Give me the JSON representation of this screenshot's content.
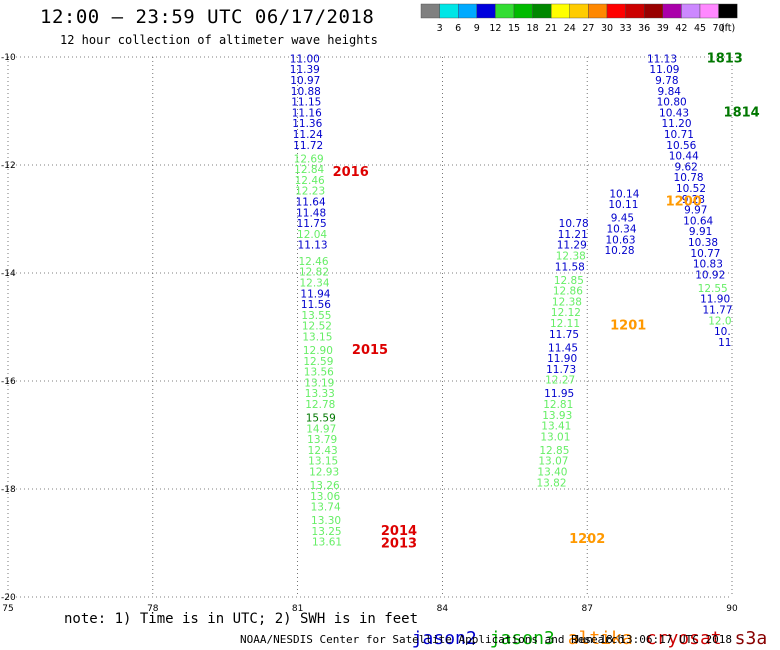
{
  "title": "12:00 — 23:59 UTC 06/17/2018",
  "subtitle": "12 hour collection of altimeter wave heights",
  "colorbar": {
    "unit": "(ft)",
    "ticks": [
      "3",
      "6",
      "9",
      "12",
      "15",
      "18",
      "21",
      "24",
      "27",
      "30",
      "33",
      "36",
      "39",
      "42",
      "45",
      "70"
    ],
    "colors": [
      "#808080",
      "#00e6e6",
      "#00aaff",
      "#0000dd",
      "#33dd33",
      "#00bb00",
      "#008800",
      "#ffff00",
      "#ffcc00",
      "#ff8800",
      "#ff0000",
      "#cc0000",
      "#990000",
      "#aa00aa",
      "#cc88ff",
      "#ff88ff",
      "#000000"
    ]
  },
  "footnote": "note: 1) Time is in UTC; 2) SWH is in feet",
  "legend": [
    {
      "label": "jason2",
      "color": "#0000cc"
    },
    {
      "label": "jason3",
      "color": "#00aa00"
    },
    {
      "label": "altika",
      "color": "#ff8800"
    },
    {
      "label": "cryosat",
      "color": "#cc0000"
    },
    {
      "label": "s3a",
      "color": "#880000"
    }
  ],
  "credit": "NOAA/NESDIS Center for Satellite Applications and Research",
  "timestamp": "Jun 18 13:06:17 UTC 2018",
  "map": {
    "lon_range": [
      75,
      90
    ],
    "lat_range": [
      -20,
      -10
    ],
    "x_ticks": [
      "75",
      "78",
      "81",
      "84",
      "87",
      "90"
    ],
    "y_ticks": [
      "-20",
      "-18",
      "-16",
      "-14",
      "-12",
      "-10"
    ],
    "grid": "dotted",
    "colors": {
      "blue": "#0000cc",
      "green": "#66ee66",
      "dgreen": "#007700",
      "orange": "#ff9900",
      "red": "#dd0000"
    },
    "tracks": [
      {
        "name": "track-2013-2016",
        "values": [
          {
            "lon": 81.15,
            "lat": -10.1,
            "v": "11.00",
            "c": "blue"
          },
          {
            "lon": 81.15,
            "lat": -10.3,
            "v": "11.39",
            "c": "blue"
          },
          {
            "lon": 81.16,
            "lat": -10.5,
            "v": "10.97",
            "c": "blue"
          },
          {
            "lon": 81.17,
            "lat": -10.7,
            "v": "10.88",
            "c": "blue"
          },
          {
            "lon": 81.18,
            "lat": -10.9,
            "v": "11.15",
            "c": "blue"
          },
          {
            "lon": 81.19,
            "lat": -11.1,
            "v": "11.16",
            "c": "blue"
          },
          {
            "lon": 81.2,
            "lat": -11.3,
            "v": "11.36",
            "c": "blue"
          },
          {
            "lon": 81.21,
            "lat": -11.5,
            "v": "11.24",
            "c": "blue"
          },
          {
            "lon": 81.22,
            "lat": -11.7,
            "v": "11.72",
            "c": "blue"
          },
          {
            "lon": 81.23,
            "lat": -11.95,
            "v": "12.69",
            "c": "green"
          },
          {
            "lon": 81.24,
            "lat": -12.15,
            "v": "12.84",
            "c": "green"
          },
          {
            "lon": 81.25,
            "lat": -12.35,
            "v": "12.46",
            "c": "green"
          },
          {
            "lon": 81.26,
            "lat": -12.55,
            "v": "12.23",
            "c": "green"
          },
          {
            "lon": 81.27,
            "lat": -12.75,
            "v": "11.64",
            "c": "blue"
          },
          {
            "lon": 81.28,
            "lat": -12.95,
            "v": "11.48",
            "c": "blue"
          },
          {
            "lon": 81.29,
            "lat": -13.15,
            "v": "11.75",
            "c": "blue"
          },
          {
            "lon": 81.3,
            "lat": -13.35,
            "v": "12.04",
            "c": "green"
          },
          {
            "lon": 81.31,
            "lat": -13.55,
            "v": "11.13",
            "c": "blue"
          },
          {
            "lon": 81.33,
            "lat": -13.85,
            "v": "12.46",
            "c": "green"
          },
          {
            "lon": 81.34,
            "lat": -14.05,
            "v": "12.82",
            "c": "green"
          },
          {
            "lon": 81.35,
            "lat": -14.25,
            "v": "12.34",
            "c": "green"
          },
          {
            "lon": 81.37,
            "lat": -14.45,
            "v": "11.94",
            "c": "blue"
          },
          {
            "lon": 81.38,
            "lat": -14.65,
            "v": "11.56",
            "c": "blue"
          },
          {
            "lon": 81.39,
            "lat": -14.85,
            "v": "13.55",
            "c": "green"
          },
          {
            "lon": 81.4,
            "lat": -15.05,
            "v": "12.52",
            "c": "green"
          },
          {
            "lon": 81.41,
            "lat": -15.25,
            "v": "13.15",
            "c": "green"
          },
          {
            "lon": 81.42,
            "lat": -15.5,
            "v": "12.90",
            "c": "green"
          },
          {
            "lon": 81.43,
            "lat": -15.7,
            "v": "12.59",
            "c": "green"
          },
          {
            "lon": 81.44,
            "lat": -15.9,
            "v": "13.56",
            "c": "green"
          },
          {
            "lon": 81.45,
            "lat": -16.1,
            "v": "13.19",
            "c": "green"
          },
          {
            "lon": 81.46,
            "lat": -16.3,
            "v": "13.33",
            "c": "green"
          },
          {
            "lon": 81.47,
            "lat": -16.5,
            "v": "12.78",
            "c": "green"
          },
          {
            "lon": 81.48,
            "lat": -16.75,
            "v": "15.59",
            "c": "dgreen"
          },
          {
            "lon": 81.49,
            "lat": -16.95,
            "v": "14.97",
            "c": "green"
          },
          {
            "lon": 81.51,
            "lat": -17.15,
            "v": "13.79",
            "c": "green"
          },
          {
            "lon": 81.52,
            "lat": -17.35,
            "v": "12.43",
            "c": "green"
          },
          {
            "lon": 81.53,
            "lat": -17.55,
            "v": "13.15",
            "c": "green"
          },
          {
            "lon": 81.55,
            "lat": -17.75,
            "v": "12.93",
            "c": "green"
          },
          {
            "lon": 81.56,
            "lat": -18.0,
            "v": "13.26",
            "c": "green"
          },
          {
            "lon": 81.57,
            "lat": -18.2,
            "v": "13.06",
            "c": "green"
          },
          {
            "lon": 81.58,
            "lat": -18.4,
            "v": "13.74",
            "c": "green"
          },
          {
            "lon": 81.59,
            "lat": -18.65,
            "v": "13.30",
            "c": "green"
          },
          {
            "lon": 81.6,
            "lat": -18.85,
            "v": "13.25",
            "c": "green"
          },
          {
            "lon": 81.61,
            "lat": -19.05,
            "v": "13.61",
            "c": "green"
          }
        ]
      },
      {
        "name": "track-1201-1202",
        "values": [
          {
            "lon": 86.72,
            "lat": -13.15,
            "v": "10.78",
            "c": "blue"
          },
          {
            "lon": 86.7,
            "lat": -13.35,
            "v": "11.21",
            "c": "blue"
          },
          {
            "lon": 86.68,
            "lat": -13.55,
            "v": "11.29",
            "c": "blue"
          },
          {
            "lon": 86.66,
            "lat": -13.75,
            "v": "12.38",
            "c": "green"
          },
          {
            "lon": 86.64,
            "lat": -13.95,
            "v": "11.58",
            "c": "blue"
          },
          {
            "lon": 86.62,
            "lat": -14.2,
            "v": "12.85",
            "c": "green"
          },
          {
            "lon": 86.6,
            "lat": -14.4,
            "v": "12.86",
            "c": "green"
          },
          {
            "lon": 86.58,
            "lat": -14.6,
            "v": "12.38",
            "c": "green"
          },
          {
            "lon": 86.56,
            "lat": -14.8,
            "v": "12.12",
            "c": "green"
          },
          {
            "lon": 86.54,
            "lat": -15.0,
            "v": "12.11",
            "c": "green"
          },
          {
            "lon": 86.52,
            "lat": -15.2,
            "v": "11.75",
            "c": "blue"
          },
          {
            "lon": 86.5,
            "lat": -15.45,
            "v": "11.45",
            "c": "blue"
          },
          {
            "lon": 86.48,
            "lat": -15.65,
            "v": "11.90",
            "c": "blue"
          },
          {
            "lon": 86.46,
            "lat": -15.85,
            "v": "11.73",
            "c": "blue"
          },
          {
            "lon": 86.44,
            "lat": -16.05,
            "v": "12.27",
            "c": "green"
          },
          {
            "lon": 86.42,
            "lat": -16.3,
            "v": "11.95",
            "c": "blue"
          },
          {
            "lon": 86.4,
            "lat": -16.5,
            "v": "12.81",
            "c": "green"
          },
          {
            "lon": 86.38,
            "lat": -16.7,
            "v": "13.93",
            "c": "green"
          },
          {
            "lon": 86.36,
            "lat": -16.9,
            "v": "13.41",
            "c": "green"
          },
          {
            "lon": 86.34,
            "lat": -17.1,
            "v": "13.01",
            "c": "green"
          },
          {
            "lon": 86.32,
            "lat": -17.35,
            "v": "12.85",
            "c": "green"
          },
          {
            "lon": 86.3,
            "lat": -17.55,
            "v": "13.07",
            "c": "green"
          },
          {
            "lon": 86.28,
            "lat": -17.75,
            "v": "13.40",
            "c": "green"
          },
          {
            "lon": 86.26,
            "lat": -17.95,
            "v": "13.82",
            "c": "green"
          }
        ]
      },
      {
        "name": "track-1200",
        "values": [
          {
            "lon": 87.77,
            "lat": -12.6,
            "v": "10.14",
            "c": "blue"
          },
          {
            "lon": 87.75,
            "lat": -12.8,
            "v": "10.11",
            "c": "blue"
          },
          {
            "lon": 87.73,
            "lat": -13.05,
            "v": "9.45",
            "c": "blue"
          },
          {
            "lon": 87.71,
            "lat": -13.25,
            "v": "10.34",
            "c": "blue"
          },
          {
            "lon": 87.69,
            "lat": -13.45,
            "v": "10.63",
            "c": "blue"
          },
          {
            "lon": 87.67,
            "lat": -13.65,
            "v": "10.28",
            "c": "blue"
          }
        ]
      },
      {
        "name": "track-1813-1814",
        "values": [
          {
            "lon": 88.55,
            "lat": -10.1,
            "v": "11.13",
            "c": "blue"
          },
          {
            "lon": 88.6,
            "lat": -10.3,
            "v": "11.09",
            "c": "blue"
          },
          {
            "lon": 88.65,
            "lat": -10.5,
            "v": "9.78",
            "c": "blue"
          },
          {
            "lon": 88.7,
            "lat": -10.7,
            "v": "9.84",
            "c": "blue"
          },
          {
            "lon": 88.75,
            "lat": -10.9,
            "v": "10.80",
            "c": "blue"
          },
          {
            "lon": 88.8,
            "lat": -11.1,
            "v": "10.43",
            "c": "blue"
          },
          {
            "lon": 88.85,
            "lat": -11.3,
            "v": "11.20",
            "c": "blue"
          },
          {
            "lon": 88.9,
            "lat": -11.5,
            "v": "10.71",
            "c": "blue"
          },
          {
            "lon": 88.95,
            "lat": -11.7,
            "v": "10.56",
            "c": "blue"
          },
          {
            "lon": 89.0,
            "lat": -11.9,
            "v": "10.44",
            "c": "blue"
          },
          {
            "lon": 89.05,
            "lat": -12.1,
            "v": "9.62",
            "c": "blue"
          },
          {
            "lon": 89.1,
            "lat": -12.3,
            "v": "10.78",
            "c": "blue"
          },
          {
            "lon": 89.15,
            "lat": -12.5,
            "v": "10.52",
            "c": "blue"
          },
          {
            "lon": 89.2,
            "lat": -12.7,
            "v": "9.23",
            "c": "blue"
          },
          {
            "lon": 89.25,
            "lat": -12.9,
            "v": "9.97",
            "c": "blue"
          },
          {
            "lon": 89.3,
            "lat": -13.1,
            "v": "10.64",
            "c": "blue"
          },
          {
            "lon": 89.35,
            "lat": -13.3,
            "v": "9.91",
            "c": "blue"
          },
          {
            "lon": 89.4,
            "lat": -13.5,
            "v": "10.38",
            "c": "blue"
          },
          {
            "lon": 89.45,
            "lat": -13.7,
            "v": "10.77",
            "c": "blue"
          },
          {
            "lon": 89.5,
            "lat": -13.9,
            "v": "10.83",
            "c": "blue"
          },
          {
            "lon": 89.55,
            "lat": -14.1,
            "v": "10.92",
            "c": "blue"
          },
          {
            "lon": 89.6,
            "lat": -14.35,
            "v": "12.55",
            "c": "green"
          },
          {
            "lon": 89.65,
            "lat": -14.55,
            "v": "11.90",
            "c": "blue"
          },
          {
            "lon": 89.7,
            "lat": -14.75,
            "v": "11.77",
            "c": "blue"
          },
          {
            "lon": 89.75,
            "lat": -14.95,
            "v": "12.0",
            "c": "green"
          },
          {
            "lon": 89.8,
            "lat": -15.15,
            "v": "10.",
            "c": "blue"
          },
          {
            "lon": 89.85,
            "lat": -15.35,
            "v": "11",
            "c": "blue"
          }
        ]
      }
    ],
    "labels": [
      {
        "text": "2016",
        "lon": 82.1,
        "lat": -12.2,
        "c": "red"
      },
      {
        "text": "2015",
        "lon": 82.5,
        "lat": -15.5,
        "c": "red"
      },
      {
        "text": "2014",
        "lon": 83.1,
        "lat": -18.85,
        "c": "red"
      },
      {
        "text": "2013",
        "lon": 83.1,
        "lat": -19.08,
        "c": "red"
      },
      {
        "text": "1201",
        "lon": 87.85,
        "lat": -15.05,
        "c": "orange"
      },
      {
        "text": "1202",
        "lon": 87.0,
        "lat": -19.0,
        "c": "orange"
      },
      {
        "text": "1200",
        "lon": 89.0,
        "lat": -12.75,
        "c": "orange"
      },
      {
        "text": "1813",
        "lon": 89.85,
        "lat": -10.1,
        "c": "dgreen"
      },
      {
        "text": "1814",
        "lon": 90.2,
        "lat": -11.1,
        "c": "dgreen"
      }
    ]
  }
}
